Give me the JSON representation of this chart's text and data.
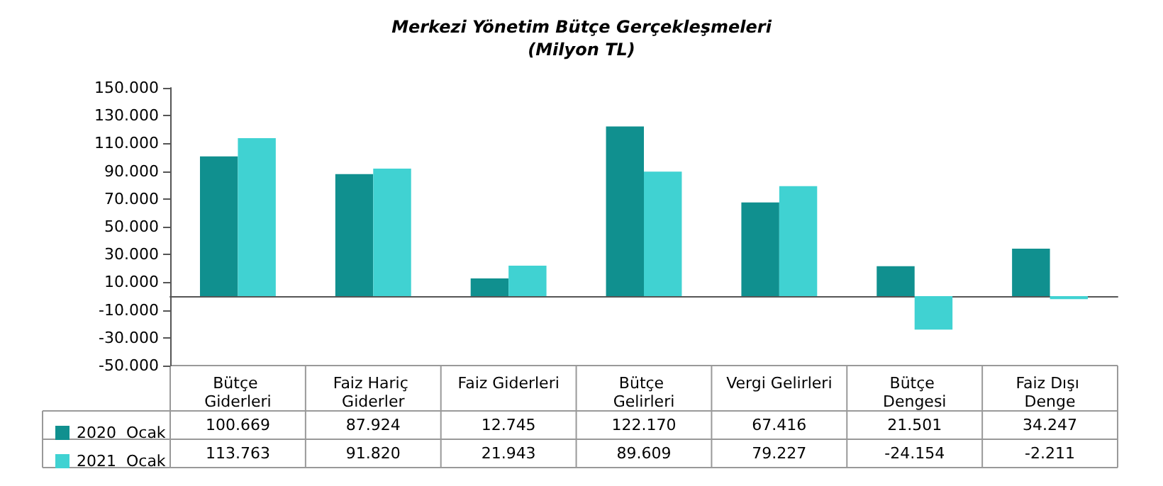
{
  "chart_data": {
    "type": "bar",
    "title": "Merkezi Yönetim Bütçe Gerçekleşmeleri",
    "subtitle": "(Milyon TL)",
    "categories": [
      "Bütçe Giderleri",
      "Faiz Hariç Giderler",
      "Faiz Giderleri",
      "Bütçe Gelirleri",
      "Vergi Gelirleri",
      "Bütçe Dengesi",
      "Faiz Dışı Denge"
    ],
    "series": [
      {
        "name": "2020  Ocak",
        "color": "#10908f",
        "values": [
          100669,
          87924,
          12745,
          122170,
          67416,
          21501,
          34247
        ],
        "value_labels": [
          "100.669",
          "87.924",
          "12.745",
          "122.170",
          "67.416",
          "21.501",
          "34.247"
        ]
      },
      {
        "name": "2021  Ocak",
        "color": "#40d2d2",
        "values": [
          113763,
          91820,
          21943,
          89609,
          79227,
          -24154,
          -2211
        ],
        "value_labels": [
          "113.763",
          "91.820",
          "21.943",
          "89.609",
          "79.227",
          "-24.154",
          "-2.211"
        ]
      }
    ],
    "ylim": [
      -50000,
      150000
    ],
    "yticks": [
      {
        "value": -50000,
        "label": "-50.000"
      },
      {
        "value": -30000,
        "label": "-30.000"
      },
      {
        "value": -10000,
        "label": "-10.000"
      },
      {
        "value": 10000,
        "label": "10.000"
      },
      {
        "value": 30000,
        "label": "30.000"
      },
      {
        "value": 50000,
        "label": "50.000"
      },
      {
        "value": 70000,
        "label": "70.000"
      },
      {
        "value": 90000,
        "label": "90.000"
      },
      {
        "value": 110000,
        "label": "110.000"
      },
      {
        "value": 130000,
        "label": "130.000"
      },
      {
        "value": 150000,
        "label": "150.000"
      }
    ],
    "grid": false,
    "legend": "bottom left"
  }
}
